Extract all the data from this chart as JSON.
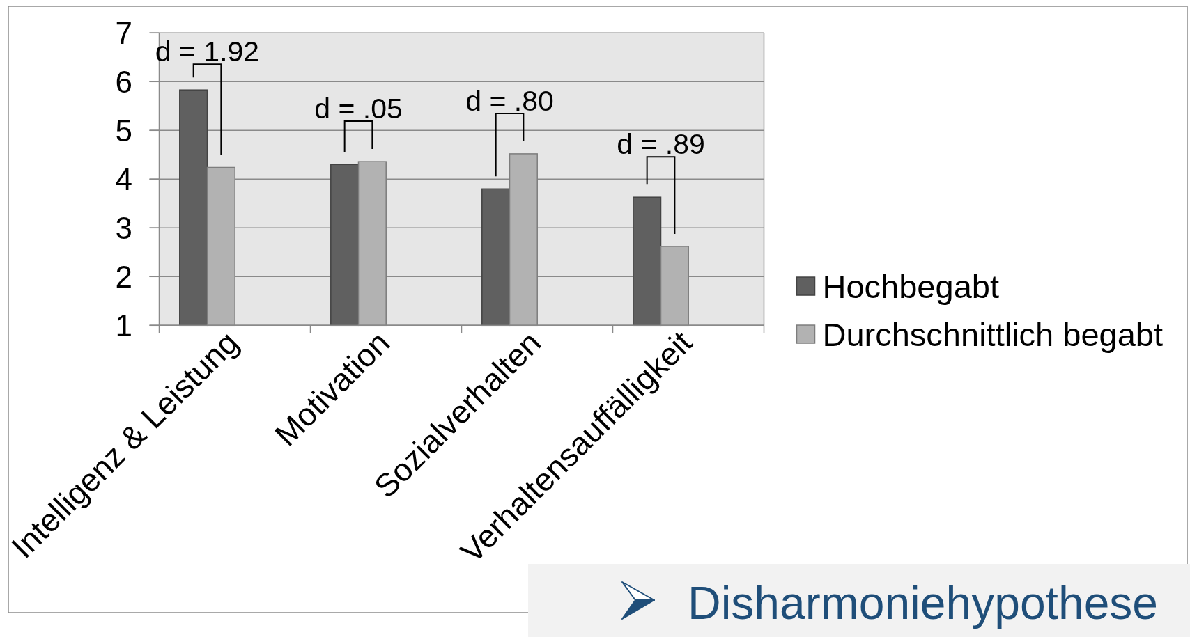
{
  "chart_data": {
    "type": "bar",
    "title": "Disharmoniehypothese",
    "categories": [
      "Intelligenz & Leistung",
      "Motivation",
      "Sozialverhalten",
      "Verhaltensauffälligkeit"
    ],
    "series": [
      {
        "name": "Hochbegabt",
        "color": "#606060",
        "values": [
          5.83,
          4.3,
          3.8,
          3.63
        ]
      },
      {
        "name": "Durchschnittlich begabt",
        "color": "#b2b2b2",
        "values": [
          4.24,
          4.36,
          4.52,
          2.62
        ]
      }
    ],
    "ylim": [
      1,
      7
    ],
    "yticks": [
      1,
      2,
      3,
      4,
      5,
      6,
      7
    ],
    "grid": "y",
    "legend": "right",
    "annotations": [
      "d = 1.92",
      "d = .05",
      "d = .80",
      "d = .89"
    ]
  }
}
